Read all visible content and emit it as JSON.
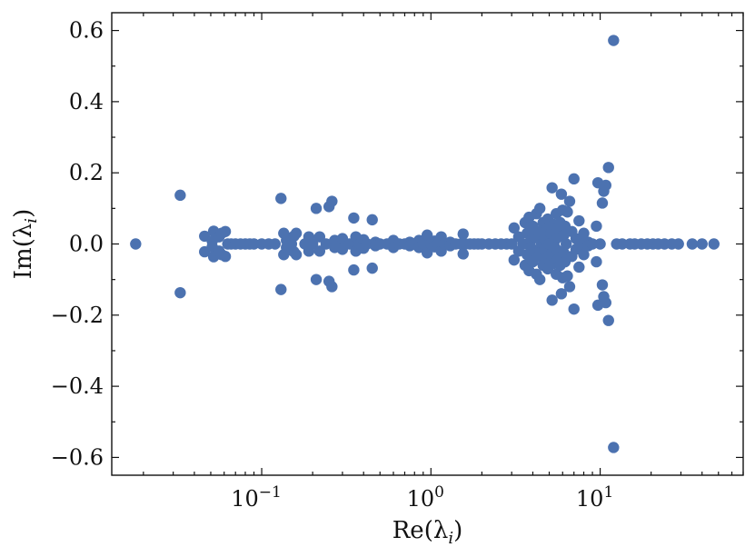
{
  "chart_data": {
    "type": "scatter",
    "xscale": "log",
    "xlabel": "Re(λ_i)",
    "ylabel": "Im(λ_i)",
    "xlim": [
      0.013,
      70
    ],
    "ylim": [
      -0.65,
      0.65
    ],
    "grid": false,
    "marker_color": "#4c72b0",
    "xticks": [
      {
        "value": 0.1,
        "base": "10",
        "exp": "−1"
      },
      {
        "value": 1,
        "base": "10",
        "exp": "0"
      },
      {
        "value": 10,
        "base": "10",
        "exp": "1"
      }
    ],
    "yticks": [
      {
        "value": 0.6,
        "label": "0.6"
      },
      {
        "value": 0.4,
        "label": "0.4"
      },
      {
        "value": 0.2,
        "label": "0.2"
      },
      {
        "value": 0.0,
        "label": "0.0"
      },
      {
        "value": -0.2,
        "label": "−0.2"
      },
      {
        "value": -0.4,
        "label": "−0.4"
      },
      {
        "value": -0.6,
        "label": "−0.6"
      }
    ],
    "points": [
      [
        0.018,
        0.0
      ],
      [
        0.033,
        0.137
      ],
      [
        0.033,
        -0.137
      ],
      [
        0.046,
        0.022
      ],
      [
        0.046,
        -0.022
      ],
      [
        0.051,
        0.008
      ],
      [
        0.051,
        -0.008
      ],
      [
        0.052,
        0.036
      ],
      [
        0.052,
        -0.036
      ],
      [
        0.056,
        0.02
      ],
      [
        0.056,
        -0.02
      ],
      [
        0.058,
        0.03
      ],
      [
        0.058,
        -0.03
      ],
      [
        0.061,
        0.035
      ],
      [
        0.061,
        -0.035
      ],
      [
        0.063,
        0.0
      ],
      [
        0.066,
        0.0
      ],
      [
        0.07,
        0.0
      ],
      [
        0.075,
        0.0
      ],
      [
        0.08,
        0.0
      ],
      [
        0.085,
        0.0
      ],
      [
        0.09,
        0.0
      ],
      [
        0.1,
        0.0
      ],
      [
        0.11,
        0.0
      ],
      [
        0.12,
        0.0
      ],
      [
        0.13,
        0.128
      ],
      [
        0.13,
        -0.128
      ],
      [
        0.135,
        0.03
      ],
      [
        0.135,
        -0.03
      ],
      [
        0.14,
        0.01
      ],
      [
        0.14,
        -0.01
      ],
      [
        0.15,
        0.0
      ],
      [
        0.155,
        0.022
      ],
      [
        0.155,
        -0.022
      ],
      [
        0.16,
        0.03
      ],
      [
        0.16,
        -0.03
      ],
      [
        0.18,
        0.0
      ],
      [
        0.19,
        0.02
      ],
      [
        0.19,
        -0.02
      ],
      [
        0.2,
        0.0
      ],
      [
        0.21,
        0.1
      ],
      [
        0.21,
        -0.1
      ],
      [
        0.22,
        0.02
      ],
      [
        0.22,
        -0.02
      ],
      [
        0.24,
        0.0
      ],
      [
        0.25,
        0.105
      ],
      [
        0.25,
        -0.105
      ],
      [
        0.26,
        0.12
      ],
      [
        0.26,
        -0.12
      ],
      [
        0.27,
        0.01
      ],
      [
        0.27,
        -0.01
      ],
      [
        0.29,
        0.0
      ],
      [
        0.3,
        0.015
      ],
      [
        0.3,
        -0.015
      ],
      [
        0.33,
        0.0
      ],
      [
        0.35,
        0.073
      ],
      [
        0.35,
        -0.073
      ],
      [
        0.36,
        0.02
      ],
      [
        0.36,
        -0.02
      ],
      [
        0.38,
        0.0
      ],
      [
        0.4,
        0.012
      ],
      [
        0.4,
        -0.012
      ],
      [
        0.42,
        0.0
      ],
      [
        0.45,
        0.068
      ],
      [
        0.45,
        -0.068
      ],
      [
        0.47,
        0.005
      ],
      [
        0.47,
        -0.005
      ],
      [
        0.5,
        0.0
      ],
      [
        0.55,
        0.0
      ],
      [
        0.6,
        0.01
      ],
      [
        0.6,
        -0.01
      ],
      [
        0.65,
        0.0
      ],
      [
        0.7,
        0.0
      ],
      [
        0.75,
        0.005
      ],
      [
        0.75,
        -0.005
      ],
      [
        0.8,
        0.0
      ],
      [
        0.85,
        0.01
      ],
      [
        0.85,
        -0.01
      ],
      [
        0.9,
        0.0
      ],
      [
        0.95,
        0.025
      ],
      [
        0.95,
        -0.025
      ],
      [
        1.0,
        0.0
      ],
      [
        1.05,
        0.008
      ],
      [
        1.05,
        -0.008
      ],
      [
        1.1,
        0.0
      ],
      [
        1.15,
        0.02
      ],
      [
        1.15,
        -0.02
      ],
      [
        1.2,
        0.0
      ],
      [
        1.3,
        0.005
      ],
      [
        1.3,
        -0.005
      ],
      [
        1.4,
        0.0
      ],
      [
        1.5,
        0.0
      ],
      [
        1.55,
        0.028
      ],
      [
        1.55,
        -0.028
      ],
      [
        1.6,
        0.0
      ],
      [
        1.7,
        0.0
      ],
      [
        1.8,
        0.0
      ],
      [
        1.9,
        0.0
      ],
      [
        2.0,
        0.0
      ],
      [
        2.2,
        0.0
      ],
      [
        2.4,
        0.0
      ],
      [
        2.6,
        0.0
      ],
      [
        2.8,
        0.0
      ],
      [
        3.0,
        0.0
      ],
      [
        3.1,
        0.045
      ],
      [
        3.1,
        -0.045
      ],
      [
        3.3,
        0.02
      ],
      [
        3.3,
        -0.02
      ],
      [
        3.5,
        0.0
      ],
      [
        3.6,
        0.06
      ],
      [
        3.6,
        -0.06
      ],
      [
        3.7,
        0.03
      ],
      [
        3.7,
        -0.03
      ],
      [
        3.8,
        0.075
      ],
      [
        3.8,
        -0.075
      ],
      [
        3.9,
        0.01
      ],
      [
        3.9,
        -0.01
      ],
      [
        4.0,
        0.05
      ],
      [
        4.0,
        -0.05
      ],
      [
        4.1,
        0.02
      ],
      [
        4.1,
        -0.02
      ],
      [
        4.2,
        0.085
      ],
      [
        4.2,
        -0.085
      ],
      [
        4.3,
        0.035
      ],
      [
        4.3,
        -0.035
      ],
      [
        4.4,
        0.1
      ],
      [
        4.4,
        -0.1
      ],
      [
        4.5,
        0.0
      ],
      [
        4.6,
        0.06
      ],
      [
        4.6,
        -0.06
      ],
      [
        4.7,
        0.015
      ],
      [
        4.7,
        -0.015
      ],
      [
        4.8,
        0.04
      ],
      [
        4.8,
        -0.04
      ],
      [
        4.9,
        0.07
      ],
      [
        4.9,
        -0.07
      ],
      [
        5.0,
        0.0
      ],
      [
        5.1,
        0.03
      ],
      [
        5.1,
        -0.03
      ],
      [
        5.2,
        0.158
      ],
      [
        5.2,
        -0.158
      ],
      [
        5.3,
        0.055
      ],
      [
        5.3,
        -0.055
      ],
      [
        5.4,
        0.01
      ],
      [
        5.4,
        -0.01
      ],
      [
        5.5,
        0.085
      ],
      [
        5.5,
        -0.085
      ],
      [
        5.6,
        0.045
      ],
      [
        5.6,
        -0.045
      ],
      [
        5.7,
        0.02
      ],
      [
        5.7,
        -0.02
      ],
      [
        5.8,
        0.06
      ],
      [
        5.8,
        -0.06
      ],
      [
        5.9,
        0.14
      ],
      [
        5.9,
        -0.14
      ],
      [
        6.0,
        0.095
      ],
      [
        6.0,
        -0.095
      ],
      [
        6.1,
        0.025
      ],
      [
        6.1,
        -0.025
      ],
      [
        6.2,
        0.05
      ],
      [
        6.2,
        -0.05
      ],
      [
        6.3,
        0.0
      ],
      [
        6.4,
        0.09
      ],
      [
        6.4,
        -0.09
      ],
      [
        6.6,
        0.12
      ],
      [
        6.6,
        -0.12
      ],
      [
        6.8,
        0.035
      ],
      [
        6.8,
        -0.035
      ],
      [
        7.0,
        0.183
      ],
      [
        7.0,
        -0.183
      ],
      [
        7.2,
        0.015
      ],
      [
        7.2,
        -0.015
      ],
      [
        7.5,
        0.065
      ],
      [
        7.5,
        -0.065
      ],
      [
        7.8,
        0.0
      ],
      [
        8.0,
        0.03
      ],
      [
        8.0,
        -0.03
      ],
      [
        8.5,
        0.005
      ],
      [
        8.5,
        -0.005
      ],
      [
        9.0,
        0.0
      ],
      [
        9.5,
        0.05
      ],
      [
        9.5,
        -0.05
      ],
      [
        9.7,
        0.172
      ],
      [
        9.7,
        -0.172
      ],
      [
        10.0,
        0.0
      ],
      [
        10.3,
        0.115
      ],
      [
        10.3,
        -0.115
      ],
      [
        10.5,
        0.148
      ],
      [
        10.5,
        -0.148
      ],
      [
        10.8,
        0.165
      ],
      [
        10.8,
        -0.165
      ],
      [
        11.2,
        0.215
      ],
      [
        11.2,
        -0.215
      ],
      [
        12.0,
        0.572
      ],
      [
        12.0,
        -0.572
      ],
      [
        12.5,
        0.0
      ],
      [
        13.5,
        0.0
      ],
      [
        15.0,
        0.0
      ],
      [
        16.0,
        0.0
      ],
      [
        17.5,
        0.0
      ],
      [
        19.0,
        0.0
      ],
      [
        20.5,
        0.0
      ],
      [
        22.0,
        0.0
      ],
      [
        24.0,
        0.0
      ],
      [
        26.5,
        0.0
      ],
      [
        29.0,
        0.0
      ],
      [
        35.0,
        0.0
      ],
      [
        40.0,
        0.0
      ],
      [
        47.0,
        0.0
      ]
    ]
  }
}
